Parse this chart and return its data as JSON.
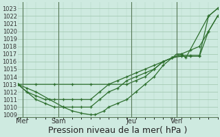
{
  "background_color": "#ceeae0",
  "grid_color": "#9dc4aa",
  "line_color": "#2d6e2d",
  "marker_color": "#2d6e2d",
  "xlabel": "Pression niveau de la mer( hPa )",
  "xlabel_fontsize": 9,
  "ylabel_labels": [
    1009,
    1010,
    1011,
    1012,
    1013,
    1014,
    1015,
    1016,
    1017,
    1018,
    1019,
    1020,
    1021,
    1022,
    1023
  ],
  "ylim": [
    1008.7,
    1023.8
  ],
  "x_tick_labels": [
    "Mer",
    "Sam",
    "Jeu",
    "Ven"
  ],
  "x_tick_positions": [
    0.5,
    4.5,
    12.5,
    17.5
  ],
  "vline_positions": [
    0.5,
    4.5,
    12.5,
    17.5
  ],
  "xlim": [
    0,
    22
  ],
  "series": [
    {
      "x": [
        0,
        1,
        2,
        3.5,
        5,
        6,
        7,
        8,
        8.5,
        9.5,
        10,
        11,
        12,
        13,
        14,
        15,
        16,
        17,
        17.5,
        18,
        18.5,
        21,
        22
      ],
      "y": [
        1013,
        1012.5,
        1012,
        1011,
        1010,
        1009.5,
        1009.2,
        1009,
        1009,
        1009.5,
        1010,
        1010.5,
        1011,
        1012,
        1013,
        1014,
        1015.5,
        1016.5,
        1017,
        1017,
        1016.5,
        1022,
        1023
      ]
    },
    {
      "x": [
        0,
        1,
        2,
        3,
        4,
        5,
        6,
        7,
        8,
        9,
        10,
        11,
        12,
        13,
        14,
        15,
        16,
        17,
        18,
        19,
        20,
        21,
        22
      ],
      "y": [
        1013,
        1012,
        1011,
        1010.5,
        1010,
        1010,
        1010,
        1010,
        1010,
        1011,
        1012,
        1012.5,
        1013.5,
        1014,
        1014.5,
        1015,
        1016,
        1016.5,
        1016.8,
        1016.8,
        1016.8,
        1022,
        1023
      ]
    },
    {
      "x": [
        0,
        1,
        2,
        3,
        4,
        5,
        6,
        7,
        8,
        9,
        10,
        11,
        12,
        13,
        14,
        15,
        16,
        17,
        18,
        19,
        20,
        21,
        22
      ],
      "y": [
        1013,
        1012,
        1011.5,
        1011,
        1011,
        1011,
        1011,
        1011,
        1011,
        1012,
        1013,
        1013.5,
        1014,
        1014.5,
        1015,
        1015.5,
        1016,
        1016.5,
        1016.7,
        1016.7,
        1016.7,
        1020,
        1022
      ]
    },
    {
      "x": [
        0,
        2,
        4,
        6,
        8,
        10,
        12,
        13,
        14,
        15,
        16,
        17,
        18,
        19,
        20,
        21,
        22
      ],
      "y": [
        1013,
        1013,
        1013,
        1013,
        1013,
        1013,
        1013,
        1013.5,
        1014,
        1015,
        1016,
        1016.5,
        1017,
        1017.5,
        1018,
        1020,
        1022
      ]
    }
  ]
}
